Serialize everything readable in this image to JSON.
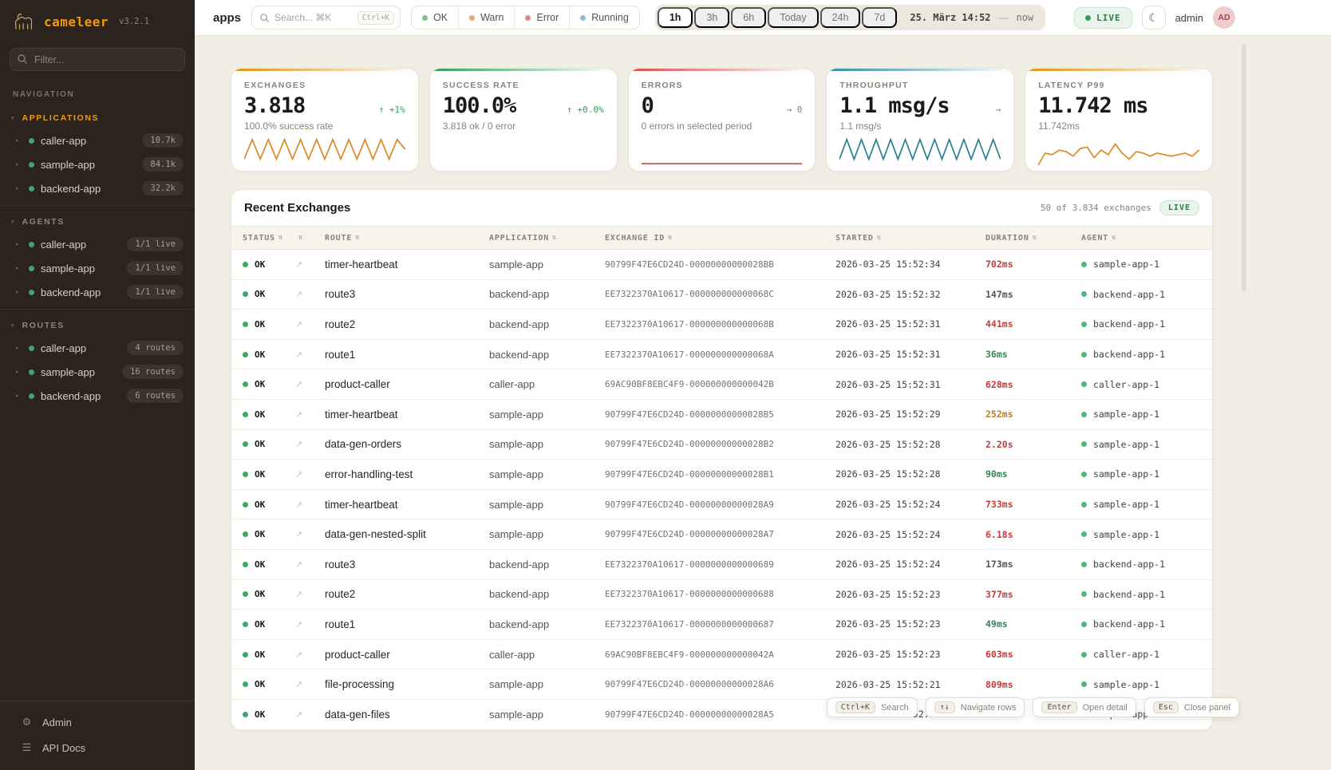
{
  "brand": {
    "name": "cameleer",
    "version": "v3.2.1"
  },
  "colors": {
    "accent_orange": "#ef9b0d",
    "green": "#2f9e5b",
    "red": "#d84b4b",
    "teal": "#2e8ba0",
    "duration_red": "#c03d3d",
    "duration_amber": "#bf7e1f",
    "duration_green": "#35855a",
    "duration_neutral": "#57534e"
  },
  "sidebar": {
    "filter_placeholder": "Filter...",
    "nav_label": "NAVIGATION",
    "sections": [
      {
        "label": "APPLICATIONS",
        "active": true,
        "items": [
          {
            "name": "caller-app",
            "badge": "10.7k"
          },
          {
            "name": "sample-app",
            "badge": "84.1k"
          },
          {
            "name": "backend-app",
            "badge": "32.2k"
          }
        ]
      },
      {
        "label": "AGENTS",
        "active": false,
        "items": [
          {
            "name": "caller-app",
            "badge": "1/1 live"
          },
          {
            "name": "sample-app",
            "badge": "1/1 live"
          },
          {
            "name": "backend-app",
            "badge": "1/1 live"
          }
        ]
      },
      {
        "label": "ROUTES",
        "active": false,
        "items": [
          {
            "name": "caller-app",
            "badge": "4 routes"
          },
          {
            "name": "sample-app",
            "badge": "16 routes"
          },
          {
            "name": "backend-app",
            "badge": "6 routes"
          }
        ]
      }
    ],
    "footer": [
      {
        "label": "Admin",
        "icon": "gear-icon",
        "glyph": "⚙"
      },
      {
        "label": "API Docs",
        "icon": "docs-icon",
        "glyph": "☰"
      }
    ]
  },
  "topbar": {
    "page_title": "apps",
    "search_placeholder": "Search... ⌘K",
    "search_kbd": "Ctrl+K",
    "status_filters": [
      {
        "label": "OK",
        "color": "#7fbf8e"
      },
      {
        "label": "Warn",
        "color": "#d9b36a"
      },
      {
        "label": "Error",
        "color": "#d98a8a"
      },
      {
        "label": "Running",
        "color": "#8bc0cc"
      }
    ],
    "time_ranges": [
      "1h",
      "3h",
      "6h",
      "Today",
      "24h",
      "7d"
    ],
    "selected_range": "1h",
    "date_label": "25. März 14:52",
    "date_sep": "—",
    "date_now": "now",
    "live_label": "LIVE",
    "user_name": "admin",
    "avatar_initials": "AD"
  },
  "cards": [
    {
      "label": "EXCHANGES",
      "value": "3.818",
      "delta": "↑ +1%",
      "delta_color": "green",
      "sub": "100.0% success rate",
      "accent": "#e0920f",
      "sparkline": {
        "color": "#d98b26",
        "values": [
          30,
          4,
          30,
          4,
          30,
          4,
          30,
          4,
          30,
          4,
          30,
          4,
          30,
          4,
          30,
          4,
          30,
          4,
          30,
          4,
          17
        ]
      }
    },
    {
      "label": "SUCCESS RATE",
      "value": "100.0%",
      "delta": "↑ +0.0%",
      "delta_color": "green",
      "sub": "3.818 ok / 0 error",
      "accent": "#2e9e57",
      "sparkline": null
    },
    {
      "label": "ERRORS",
      "value": "0",
      "delta": "→ 0",
      "delta_color": "neutral",
      "sub": "0 errors in selected period",
      "accent": "#d84b4b",
      "sparkline": {
        "color": "#cf4747",
        "values": [
          36,
          36
        ]
      }
    },
    {
      "label": "THROUGHPUT",
      "value": "1.1 msg/s",
      "delta": "→",
      "delta_color": "neutral",
      "sub": "1.1 msg/s",
      "accent": "#2e8ba0",
      "sparkline": {
        "color": "#2a7f8f",
        "values": [
          30,
          4,
          30,
          4,
          30,
          4,
          30,
          4,
          30,
          4,
          30,
          4,
          30,
          4,
          30,
          4,
          30,
          4,
          30,
          4,
          30,
          4,
          30
        ]
      }
    },
    {
      "label": "LATENCY P99",
      "value": "11.742 ms",
      "delta": "",
      "delta_color": "neutral",
      "sub": "11.742ms",
      "accent": "#e0920f",
      "sparkline": {
        "color": "#d98b26",
        "values": [
          38,
          22,
          24,
          18,
          20,
          26,
          16,
          14,
          28,
          18,
          24,
          10,
          22,
          30,
          20,
          22,
          26,
          22,
          24,
          26,
          24,
          22,
          26,
          18
        ]
      }
    }
  ],
  "table": {
    "title": "Recent Exchanges",
    "summary": "50 of 3.834 exchanges",
    "live_label": "LIVE",
    "columns": [
      {
        "label": "STATUS",
        "sortable": true
      },
      {
        "label": "",
        "sortable": true
      },
      {
        "label": "ROUTE",
        "sortable": true
      },
      {
        "label": "APPLICATION",
        "sortable": true
      },
      {
        "label": "EXCHANGE ID",
        "sortable": true
      },
      {
        "label": "STARTED",
        "sortable": true
      },
      {
        "label": "DURATION",
        "sortable": true
      },
      {
        "label": "AGENT",
        "sortable": true
      }
    ],
    "rows": [
      {
        "status": "OK",
        "route": "timer-heartbeat",
        "app": "sample-app",
        "id": "90799F47E6CD24D-00000000000028BB",
        "started": "2026-03-25 15:52:34",
        "duration": "702ms",
        "duration_color": "red",
        "agent": "sample-app-1"
      },
      {
        "status": "OK",
        "route": "route3",
        "app": "backend-app",
        "id": "EE7322370A10617-000000000000068C",
        "started": "2026-03-25 15:52:32",
        "duration": "147ms",
        "duration_color": "neutral",
        "agent": "backend-app-1"
      },
      {
        "status": "OK",
        "route": "route2",
        "app": "backend-app",
        "id": "EE7322370A10617-000000000000068B",
        "started": "2026-03-25 15:52:31",
        "duration": "441ms",
        "duration_color": "red",
        "agent": "backend-app-1"
      },
      {
        "status": "OK",
        "route": "route1",
        "app": "backend-app",
        "id": "EE7322370A10617-000000000000068A",
        "started": "2026-03-25 15:52:31",
        "duration": "36ms",
        "duration_color": "green",
        "agent": "backend-app-1"
      },
      {
        "status": "OK",
        "route": "product-caller",
        "app": "caller-app",
        "id": "69AC90BF8EBC4F9-000000000000042B",
        "started": "2026-03-25 15:52:31",
        "duration": "628ms",
        "duration_color": "red",
        "agent": "caller-app-1"
      },
      {
        "status": "OK",
        "route": "timer-heartbeat",
        "app": "sample-app",
        "id": "90799F47E6CD24D-00000000000028B5",
        "started": "2026-03-25 15:52:29",
        "duration": "252ms",
        "duration_color": "amber",
        "agent": "sample-app-1"
      },
      {
        "status": "OK",
        "route": "data-gen-orders",
        "app": "sample-app",
        "id": "90799F47E6CD24D-00000000000028B2",
        "started": "2026-03-25 15:52:28",
        "duration": "2.20s",
        "duration_color": "red",
        "agent": "sample-app-1"
      },
      {
        "status": "OK",
        "route": "error-handling-test",
        "app": "sample-app",
        "id": "90799F47E6CD24D-00000000000028B1",
        "started": "2026-03-25 15:52:28",
        "duration": "90ms",
        "duration_color": "green",
        "agent": "sample-app-1"
      },
      {
        "status": "OK",
        "route": "timer-heartbeat",
        "app": "sample-app",
        "id": "90799F47E6CD24D-00000000000028A9",
        "started": "2026-03-25 15:52:24",
        "duration": "733ms",
        "duration_color": "red",
        "agent": "sample-app-1"
      },
      {
        "status": "OK",
        "route": "data-gen-nested-split",
        "app": "sample-app",
        "id": "90799F47E6CD24D-00000000000028A7",
        "started": "2026-03-25 15:52:24",
        "duration": "6.18s",
        "duration_color": "red",
        "agent": "sample-app-1"
      },
      {
        "status": "OK",
        "route": "route3",
        "app": "backend-app",
        "id": "EE7322370A10617-0000000000000689",
        "started": "2026-03-25 15:52:24",
        "duration": "173ms",
        "duration_color": "neutral",
        "agent": "backend-app-1"
      },
      {
        "status": "OK",
        "route": "route2",
        "app": "backend-app",
        "id": "EE7322370A10617-0000000000000688",
        "started": "2026-03-25 15:52:23",
        "duration": "377ms",
        "duration_color": "red",
        "agent": "backend-app-1"
      },
      {
        "status": "OK",
        "route": "route1",
        "app": "backend-app",
        "id": "EE7322370A10617-0000000000000687",
        "started": "2026-03-25 15:52:23",
        "duration": "49ms",
        "duration_color": "green",
        "agent": "backend-app-1"
      },
      {
        "status": "OK",
        "route": "product-caller",
        "app": "caller-app",
        "id": "69AC90BF8EBC4F9-000000000000042A",
        "started": "2026-03-25 15:52:23",
        "duration": "603ms",
        "duration_color": "red",
        "agent": "caller-app-1"
      },
      {
        "status": "OK",
        "route": "file-processing",
        "app": "sample-app",
        "id": "90799F47E6CD24D-00000000000028A6",
        "started": "2026-03-25 15:52:21",
        "duration": "809ms",
        "duration_color": "red",
        "agent": "sample-app-1"
      },
      {
        "status": "OK",
        "route": "data-gen-files",
        "app": "sample-app",
        "id": "90799F47E6CD24D-00000000000028A5",
        "started": "2026-03-25 15:52:21",
        "duration": "",
        "duration_color": "neutral",
        "agent": "sample-app-1"
      }
    ]
  },
  "shortcuts": [
    {
      "key": "Ctrl+K",
      "label": "Search"
    },
    {
      "key": "↑↓",
      "label": "Navigate rows"
    },
    {
      "key": "Enter",
      "label": "Open detail"
    },
    {
      "key": "Esc",
      "label": "Close panel"
    }
  ]
}
